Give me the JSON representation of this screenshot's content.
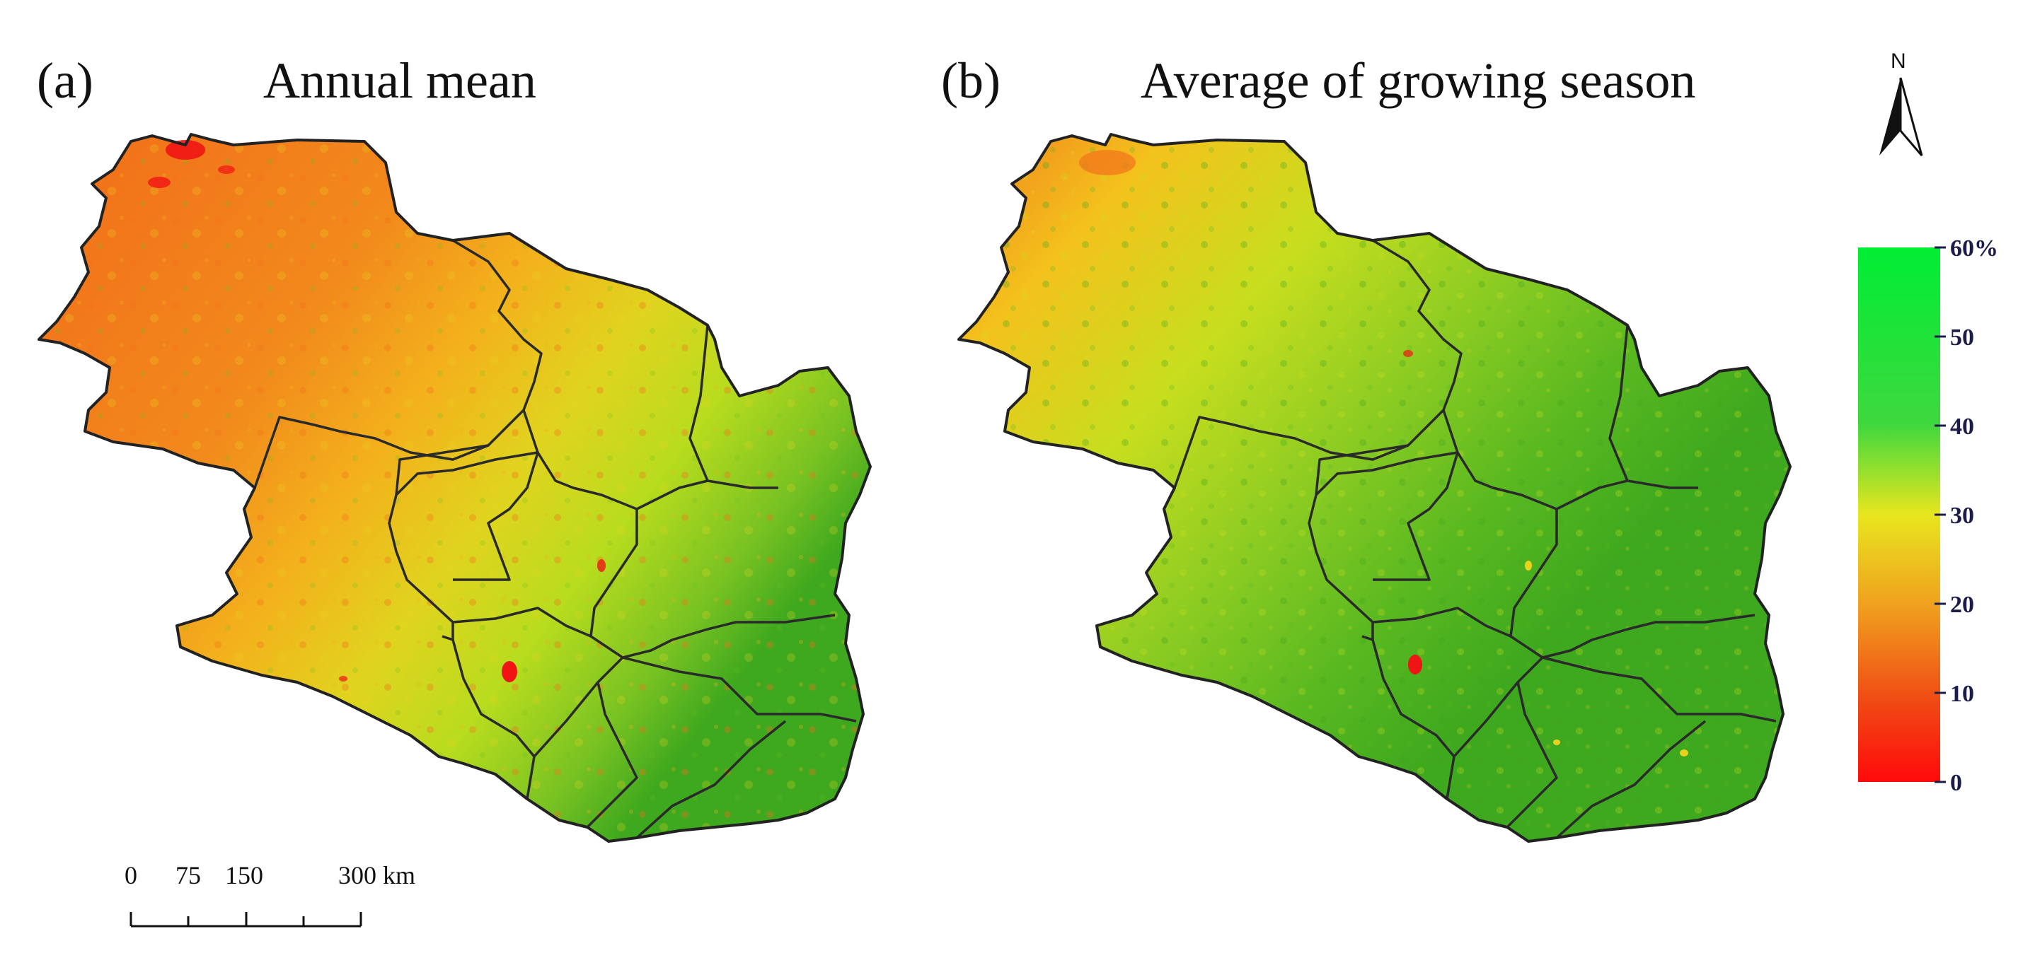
{
  "panels": [
    {
      "letter": "(a)",
      "title": "Annual mean"
    },
    {
      "letter": "(b)",
      "title": "Average of growing season"
    }
  ],
  "north_arrow": {
    "label": "N"
  },
  "legend": {
    "unit": "%",
    "min": 0,
    "max": 60,
    "ticks": [
      "60%",
      "50",
      "40",
      "30",
      "20",
      "10",
      "0"
    ],
    "colors": [
      "#00ee33",
      "#3ed83e",
      "#c8e01e",
      "#f0c81e",
      "#f07a1e",
      "#ff0a0a"
    ]
  },
  "scale_bar": {
    "unit": "km",
    "labels": [
      "0",
      "75",
      "150",
      "300 km"
    ]
  },
  "map_colors": {
    "deep_green": "#3ea81e",
    "green": "#66bf22",
    "yellow_green": "#b8dc1e",
    "yellow": "#e8d21e",
    "orange_yellow": "#f3b21c",
    "orange": "#f27a1c",
    "red": "#f01414",
    "boundary": "#2a2a2a"
  }
}
